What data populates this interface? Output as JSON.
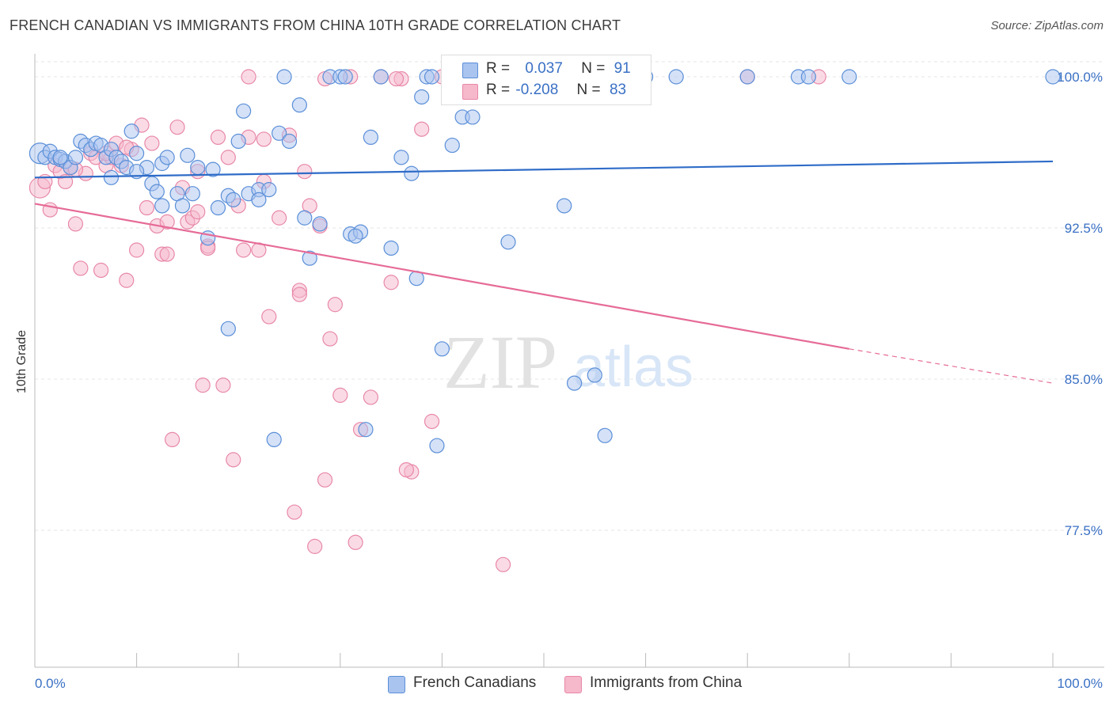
{
  "title": "FRENCH CANADIAN VS IMMIGRANTS FROM CHINA 10TH GRADE CORRELATION CHART",
  "source": "Source: ZipAtlas.com",
  "watermark": {
    "zip": "ZIP",
    "atlas": "atlas"
  },
  "colors": {
    "blue_fill": "#a9c4ef",
    "blue_stroke": "#5b8fd8",
    "blue_line": "#2f6cc8",
    "pink_fill": "#f6b8cb",
    "pink_stroke": "#e888a8",
    "pink_line": "#e66b97",
    "axis_text": "#3a70c4",
    "grid": "#e6e6e6"
  },
  "legend": {
    "rows": [
      {
        "r_label": "R =",
        "r_value": "0.037",
        "n_label": "N =",
        "n_value": "91",
        "color": "blue"
      },
      {
        "r_label": "R =",
        "r_value": "-0.208",
        "n_label": "N =",
        "n_value": "83",
        "color": "pink"
      }
    ]
  },
  "bottom_legend": [
    {
      "label": "French Canadians",
      "color": "blue"
    },
    {
      "label": "Immigrants from China",
      "color": "pink"
    }
  ],
  "chart_data": {
    "type": "scatter",
    "title": "FRENCH CANADIAN VS IMMIGRANTS FROM CHINA 10TH GRADE CORRELATION CHART",
    "xlabel": "",
    "ylabel": "10th Grade",
    "xlim": [
      0,
      100
    ],
    "ylim": [
      70.0,
      101.0
    ],
    "x_tick_labels": [
      "0.0%",
      "100.0%"
    ],
    "y_ticks": [
      100.0,
      92.5,
      85.0,
      77.5
    ],
    "y_tick_labels": [
      "100.0%",
      "92.5%",
      "85.0%",
      "77.5%"
    ],
    "grid": true,
    "legend_position": "top-center",
    "series": [
      {
        "name": "French Canadians",
        "color": "blue",
        "trend": {
          "x": [
            0,
            100
          ],
          "y": [
            95.0,
            95.8
          ]
        },
        "points": [
          [
            0.5,
            96.2
          ],
          [
            1.0,
            96.0
          ],
          [
            1.5,
            96.3
          ],
          [
            2.0,
            96.0
          ],
          [
            2.5,
            95.9
          ],
          [
            3.0,
            95.8
          ],
          [
            3.5,
            95.5
          ],
          [
            4.0,
            96.0
          ],
          [
            4.5,
            96.8
          ],
          [
            5.0,
            96.6
          ],
          [
            5.5,
            96.4
          ],
          [
            6.0,
            96.7
          ],
          [
            6.5,
            96.6
          ],
          [
            7.0,
            96.0
          ],
          [
            7.5,
            96.4
          ],
          [
            8.0,
            96.0
          ],
          [
            8.5,
            95.8
          ],
          [
            9.0,
            95.5
          ],
          [
            9.5,
            97.3
          ],
          [
            10.0,
            96.2
          ],
          [
            11.0,
            95.5
          ],
          [
            11.5,
            94.7
          ],
          [
            12.0,
            94.3
          ],
          [
            12.5,
            95.7
          ],
          [
            13.0,
            96.0
          ],
          [
            14.0,
            94.2
          ],
          [
            14.5,
            93.6
          ],
          [
            15.0,
            96.1
          ],
          [
            16.0,
            95.5
          ],
          [
            17.0,
            92.0
          ],
          [
            18.0,
            93.5
          ],
          [
            19.0,
            94.1
          ],
          [
            19.5,
            93.9
          ],
          [
            20.0,
            96.8
          ],
          [
            21.0,
            94.2
          ],
          [
            22.0,
            94.4
          ],
          [
            23.0,
            94.4
          ],
          [
            24.0,
            97.2
          ],
          [
            25.0,
            96.8
          ],
          [
            26.0,
            98.6
          ],
          [
            27.0,
            91.0
          ],
          [
            28.0,
            92.7
          ],
          [
            29.0,
            100.0
          ],
          [
            30.0,
            100.0
          ],
          [
            31.0,
            92.2
          ],
          [
            32.0,
            92.3
          ],
          [
            33.0,
            97.0
          ],
          [
            34.0,
            100.0
          ],
          [
            35.0,
            91.5
          ],
          [
            36.0,
            96.0
          ],
          [
            37.0,
            95.2
          ],
          [
            38.0,
            99.0
          ],
          [
            38.5,
            100.0
          ],
          [
            39.0,
            100.0
          ],
          [
            40.0,
            86.5
          ],
          [
            41.0,
            96.6
          ],
          [
            42.0,
            98.0
          ],
          [
            43.0,
            98.0
          ],
          [
            45.0,
            100.0
          ],
          [
            47.0,
            100.0
          ],
          [
            50.0,
            100.0
          ],
          [
            52.0,
            93.6
          ],
          [
            53.0,
            84.8
          ],
          [
            55.0,
            85.2
          ],
          [
            56.0,
            82.2
          ],
          [
            58.0,
            100.0
          ],
          [
            60.0,
            100.0
          ],
          [
            63.0,
            100.0
          ],
          [
            70.0,
            100.0
          ],
          [
            75.0,
            100.0
          ],
          [
            76.0,
            100.0
          ],
          [
            80.0,
            100.0
          ],
          [
            100.0,
            100.0
          ],
          [
            23.5,
            82.0
          ],
          [
            32.5,
            82.5
          ],
          [
            39.5,
            81.7
          ],
          [
            22.0,
            93.9
          ],
          [
            26.5,
            93.0
          ],
          [
            19.0,
            87.5
          ],
          [
            37.5,
            90.0
          ],
          [
            31.5,
            92.1
          ],
          [
            17.5,
            95.4
          ],
          [
            12.5,
            93.6
          ],
          [
            7.5,
            95.0
          ],
          [
            2.5,
            96.0
          ],
          [
            20.5,
            98.3
          ],
          [
            15.5,
            94.2
          ],
          [
            46.5,
            91.8
          ],
          [
            24.5,
            100.0
          ],
          [
            30.5,
            100.0
          ],
          [
            10.0,
            95.3
          ]
        ]
      },
      {
        "name": "Immigrants from China",
        "color": "pink",
        "trend": {
          "x": [
            0,
            80
          ],
          "y": [
            93.7,
            86.5
          ]
        },
        "trend_dashed": {
          "x": [
            80,
            100
          ],
          "y": [
            86.5,
            84.8
          ]
        },
        "points": [
          [
            0.5,
            94.5
          ],
          [
            1.0,
            94.8
          ],
          [
            1.5,
            93.4
          ],
          [
            2.0,
            95.6
          ],
          [
            2.5,
            95.3
          ],
          [
            3.0,
            94.8
          ],
          [
            3.5,
            95.5
          ],
          [
            4.0,
            92.7
          ],
          [
            4.5,
            90.5
          ],
          [
            5.0,
            95.2
          ],
          [
            5.5,
            96.2
          ],
          [
            6.0,
            96.0
          ],
          [
            6.5,
            90.4
          ],
          [
            7.0,
            95.6
          ],
          [
            7.5,
            96.0
          ],
          [
            8.0,
            96.7
          ],
          [
            8.5,
            95.6
          ],
          [
            9.0,
            89.9
          ],
          [
            9.5,
            96.4
          ],
          [
            10.0,
            91.4
          ],
          [
            10.5,
            97.6
          ],
          [
            11.0,
            93.5
          ],
          [
            11.5,
            96.7
          ],
          [
            12.0,
            92.6
          ],
          [
            12.5,
            91.2
          ],
          [
            13.0,
            91.2
          ],
          [
            13.5,
            82.0
          ],
          [
            14.0,
            97.5
          ],
          [
            14.5,
            94.5
          ],
          [
            15.0,
            92.8
          ],
          [
            15.5,
            93.0
          ],
          [
            16.0,
            93.3
          ],
          [
            16.5,
            84.7
          ],
          [
            17.0,
            91.6
          ],
          [
            18.0,
            97.0
          ],
          [
            18.5,
            84.7
          ],
          [
            19.0,
            96.0
          ],
          [
            19.5,
            81.0
          ],
          [
            20.0,
            93.6
          ],
          [
            21.0,
            97.0
          ],
          [
            22.0,
            91.4
          ],
          [
            22.5,
            94.8
          ],
          [
            23.0,
            88.1
          ],
          [
            24.0,
            93.0
          ],
          [
            25.0,
            97.1
          ],
          [
            26.0,
            89.4
          ],
          [
            26.5,
            95.3
          ],
          [
            27.0,
            93.6
          ],
          [
            28.0,
            92.6
          ],
          [
            28.5,
            80.0
          ],
          [
            29.0,
            87.0
          ],
          [
            30.0,
            84.2
          ],
          [
            31.0,
            100.0
          ],
          [
            32.0,
            82.5
          ],
          [
            33.0,
            84.1
          ],
          [
            34.0,
            100.0
          ],
          [
            35.0,
            89.8
          ],
          [
            36.0,
            99.9
          ],
          [
            37.0,
            80.4
          ],
          [
            38.0,
            97.4
          ],
          [
            39.0,
            82.9
          ],
          [
            40.0,
            100.0
          ],
          [
            21.0,
            100.0
          ],
          [
            25.5,
            78.4
          ],
          [
            27.5,
            76.7
          ],
          [
            31.5,
            76.9
          ],
          [
            46.0,
            75.8
          ],
          [
            36.5,
            80.5
          ],
          [
            17.0,
            91.5
          ],
          [
            20.5,
            91.4
          ],
          [
            7.0,
            96.2
          ],
          [
            29.5,
            88.7
          ],
          [
            26.0,
            89.2
          ],
          [
            13.0,
            92.8
          ],
          [
            28.5,
            99.9
          ],
          [
            35.5,
            99.9
          ],
          [
            46.0,
            100.0
          ],
          [
            70.0,
            100.0
          ],
          [
            77.0,
            100.0
          ],
          [
            4.0,
            95.4
          ],
          [
            22.5,
            96.9
          ],
          [
            16.0,
            95.3
          ],
          [
            9.0,
            96.5
          ]
        ]
      }
    ]
  }
}
